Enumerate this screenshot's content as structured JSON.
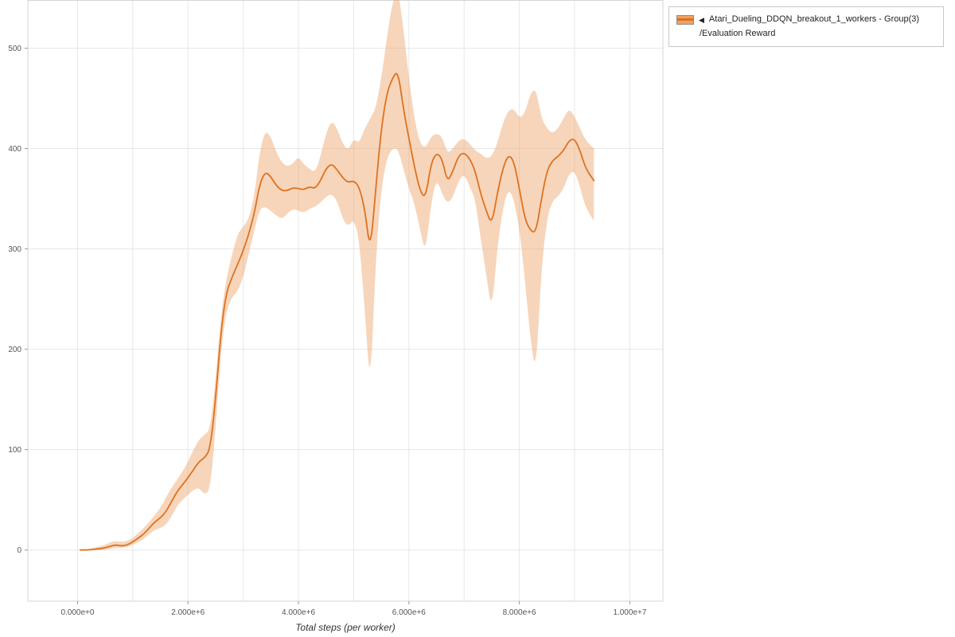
{
  "legend": {
    "collapse_icon": "◀",
    "series_line1": "Atari_Dueling_DDQN_breakout_1_workers - Group(3)",
    "series_line2": "/Evaluation Reward"
  },
  "chart_data": {
    "type": "line",
    "title": "",
    "xlabel": "Total steps (per worker)",
    "ylabel": "",
    "series": [
      {
        "name": "Atari_Dueling_DDQN_breakout_1_workers - Group(3)/Evaluation Reward",
        "band": "mean with shaded min/max range"
      }
    ],
    "x_ticks": [
      0,
      2000000,
      4000000,
      6000000,
      8000000,
      10000000
    ],
    "x_tick_labels": [
      "0.000e+0",
      "2.000e+6",
      "4.000e+6",
      "6.000e+6",
      "8.000e+6",
      "1.000e+7"
    ],
    "y_ticks": [
      0,
      100,
      200,
      300,
      400,
      500
    ],
    "y_tick_labels": [
      "0",
      "100",
      "200",
      "300",
      "400",
      "500"
    ],
    "x_minor_step": 1000000,
    "xlim": [
      -900000,
      10600000
    ],
    "ylim": [
      -51,
      548
    ],
    "grid": true,
    "legend_position": "top-right",
    "colors": {
      "line": "#dd7220",
      "band": "#eda265",
      "band_opacity": 0.45,
      "grid": "#e7e7e7",
      "border": "#d5d5d5",
      "axis": "#999999",
      "tick_text": "#555555"
    },
    "x": [
      50000,
      200000,
      350000,
      500000,
      600000,
      700000,
      800000,
      900000,
      1000000,
      1100000,
      1200000,
      1300000,
      1400000,
      1500000,
      1600000,
      1700000,
      1800000,
      1900000,
      2000000,
      2100000,
      2200000,
      2300000,
      2400000,
      2500000,
      2600000,
      2700000,
      2800000,
      2900000,
      3000000,
      3100000,
      3200000,
      3300000,
      3400000,
      3500000,
      3600000,
      3700000,
      3800000,
      3900000,
      4000000,
      4100000,
      4200000,
      4300000,
      4400000,
      4500000,
      4600000,
      4700000,
      4800000,
      4900000,
      5000000,
      5100000,
      5200000,
      5300000,
      5400000,
      5500000,
      5600000,
      5700000,
      5800000,
      5900000,
      6000000,
      6100000,
      6200000,
      6300000,
      6400000,
      6500000,
      6600000,
      6700000,
      6800000,
      6900000,
      7000000,
      7100000,
      7200000,
      7300000,
      7400000,
      7500000,
      7600000,
      7700000,
      7800000,
      7900000,
      8000000,
      8100000,
      8200000,
      8300000,
      8400000,
      8500000,
      8600000,
      8700000,
      8800000,
      8900000,
      9000000,
      9100000,
      9200000,
      9350000
    ],
    "mean": [
      0,
      0,
      1,
      2,
      4,
      5,
      4,
      5,
      8,
      12,
      16,
      22,
      28,
      32,
      38,
      48,
      58,
      65,
      72,
      80,
      88,
      92,
      100,
      150,
      220,
      258,
      272,
      285,
      298,
      315,
      335,
      365,
      377,
      372,
      363,
      358,
      358,
      361,
      360,
      359,
      362,
      360,
      368,
      380,
      385,
      379,
      371,
      366,
      368,
      362,
      340,
      296,
      360,
      420,
      455,
      470,
      478,
      440,
      410,
      382,
      358,
      350,
      385,
      396,
      390,
      366,
      378,
      393,
      396,
      390,
      378,
      355,
      338,
      324,
      355,
      380,
      394,
      388,
      360,
      330,
      318,
      316,
      350,
      378,
      388,
      392,
      398,
      408,
      410,
      398,
      380,
      368
    ],
    "lower": [
      0,
      0,
      0,
      0,
      1,
      2,
      2,
      3,
      5,
      8,
      11,
      16,
      20,
      22,
      25,
      33,
      44,
      50,
      55,
      60,
      62,
      55,
      60,
      120,
      200,
      240,
      252,
      258,
      272,
      295,
      318,
      340,
      342,
      338,
      333,
      330,
      335,
      340,
      338,
      336,
      340,
      342,
      346,
      352,
      355,
      348,
      330,
      322,
      330,
      310,
      240,
      157,
      290,
      360,
      390,
      400,
      400,
      380,
      360,
      345,
      320,
      295,
      345,
      370,
      355,
      345,
      352,
      368,
      375,
      362,
      350,
      310,
      275,
      237,
      300,
      340,
      360,
      350,
      320,
      270,
      210,
      175,
      280,
      330,
      348,
      352,
      360,
      375,
      378,
      362,
      340,
      328
    ],
    "upper": [
      0,
      1,
      3,
      5,
      8,
      9,
      8,
      9,
      12,
      17,
      22,
      28,
      35,
      42,
      52,
      62,
      70,
      78,
      88,
      100,
      110,
      115,
      120,
      170,
      235,
      272,
      295,
      315,
      322,
      330,
      352,
      398,
      418,
      412,
      396,
      386,
      382,
      385,
      392,
      384,
      380,
      376,
      392,
      415,
      428,
      420,
      405,
      398,
      410,
      405,
      420,
      430,
      440,
      470,
      510,
      545,
      560,
      520,
      470,
      430,
      405,
      400,
      412,
      415,
      412,
      395,
      400,
      408,
      410,
      405,
      398,
      395,
      390,
      392,
      405,
      425,
      438,
      440,
      430,
      435,
      455,
      460,
      430,
      420,
      415,
      420,
      430,
      440,
      432,
      420,
      408,
      400
    ]
  }
}
